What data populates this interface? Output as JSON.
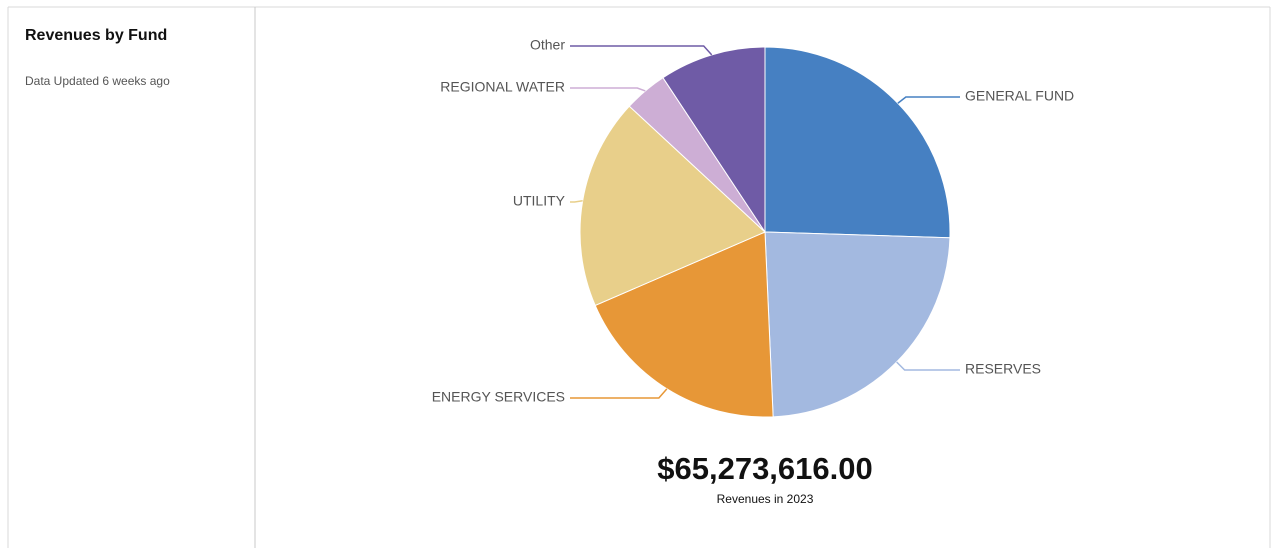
{
  "sidebar": {
    "title": "Revenues by Fund",
    "updated": "Data Updated 6 weeks ago"
  },
  "chart_data": {
    "type": "pie",
    "categories": [
      "GENERAL FUND",
      "RESERVES",
      "ENERGY SERVICES",
      "UTILITY",
      "REGIONAL WATER",
      "Other"
    ],
    "values": [
      25.5,
      23.8,
      19.2,
      18.4,
      3.8,
      9.3
    ],
    "colors": [
      "#4680c2",
      "#a3b9e0",
      "#e79737",
      "#e8cf8a",
      "#cdaed5",
      "#6f5ba6"
    ]
  },
  "summary": {
    "total": "$65,273,616.00",
    "caption": "Revenues in 2023"
  }
}
